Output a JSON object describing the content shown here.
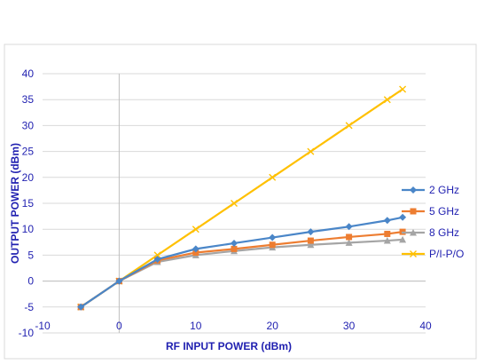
{
  "chart_data": {
    "type": "line",
    "title": "",
    "xlabel": "RF INPUT POWER (dBm)",
    "ylabel": "OUTPUT POWER (dBm)",
    "xlim": [
      -10,
      40
    ],
    "ylim": [
      -10,
      40
    ],
    "x_ticks": [
      -10,
      0,
      10,
      20,
      30,
      40
    ],
    "y_ticks": [
      -10,
      -5,
      0,
      5,
      10,
      15,
      20,
      25,
      30,
      35,
      40
    ],
    "grid": "horizontal",
    "legend_position": "right",
    "series": [
      {
        "name": "2 GHz",
        "color": "#4a86c8",
        "marker": "diamond",
        "x": [
          -5,
          0,
          5,
          10,
          15,
          20,
          25,
          30,
          35,
          37
        ],
        "y": [
          -5,
          0,
          4.2,
          6.2,
          7.3,
          8.4,
          9.5,
          10.5,
          11.7,
          12.3
        ]
      },
      {
        "name": "5 GHz",
        "color": "#ed7d31",
        "marker": "square",
        "x": [
          -5,
          0,
          5,
          10,
          15,
          20,
          25,
          30,
          35,
          37
        ],
        "y": [
          -5,
          0,
          4.0,
          5.5,
          6.2,
          7.0,
          7.8,
          8.5,
          9.1,
          9.5
        ]
      },
      {
        "name": "8 GHz",
        "color": "#a5a5a5",
        "marker": "triangle",
        "x": [
          -5,
          0,
          5,
          10,
          15,
          20,
          25,
          30,
          35,
          37
        ],
        "y": [
          -5,
          0,
          3.7,
          5.0,
          5.8,
          6.5,
          7.0,
          7.4,
          7.8,
          8.0
        ]
      },
      {
        "name": "P/I-P/O",
        "color": "#ffc000",
        "marker": "x",
        "x": [
          -5,
          0,
          5,
          10,
          15,
          20,
          25,
          30,
          35,
          37
        ],
        "y": [
          -5,
          0,
          5,
          10,
          15,
          20,
          25,
          30,
          35,
          37
        ]
      }
    ]
  }
}
